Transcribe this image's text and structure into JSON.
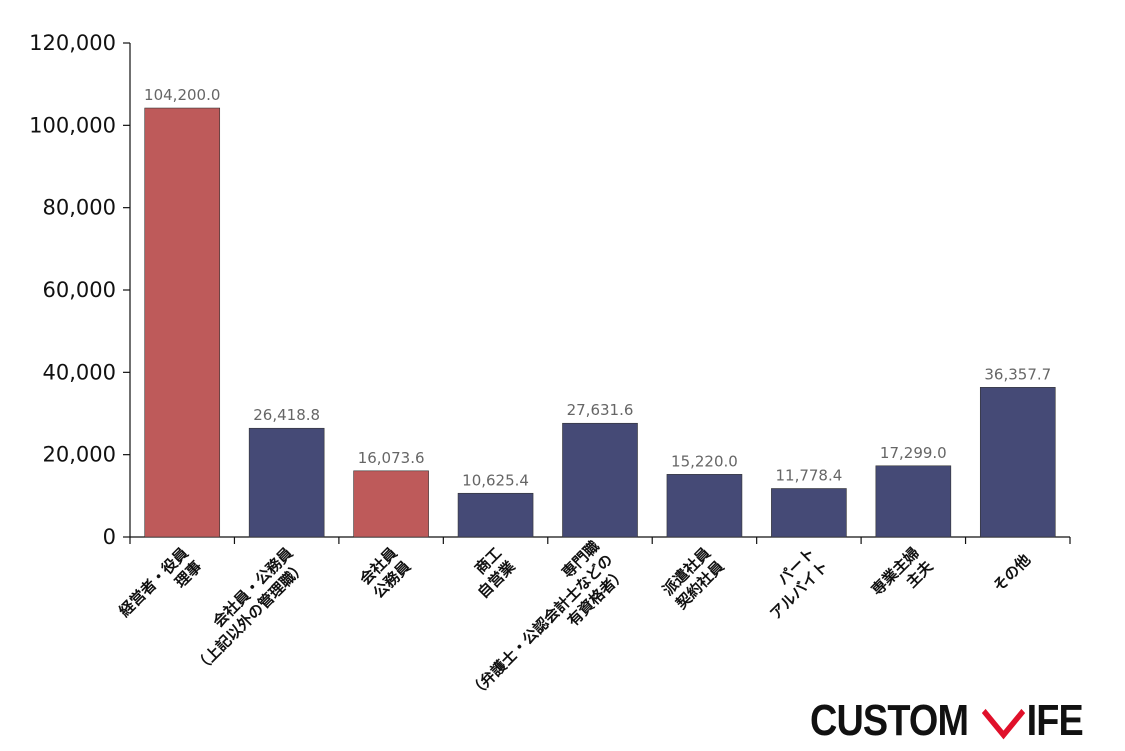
{
  "chart_data": {
    "type": "bar",
    "categories": [
      "経営者・役員\n理事",
      "会社員・公務員\n（上記以外の管理職）",
      "会社員\n公務員",
      "商工\n自営業",
      "専門職\n（弁護士・公認会計士などの\n有資格者）",
      "派遣社員\n契約社員",
      "パート\nアルバイト",
      "専業主婦\n主夫",
      "その他"
    ],
    "values": [
      104200.0,
      26418.8,
      16073.6,
      10625.4,
      27631.6,
      15220.0,
      11778.4,
      17299.0,
      36357.7
    ],
    "value_labels": [
      "104,200.0",
      "26,418.8",
      "16,073.6",
      "10,625.4",
      "27,631.6",
      "15,220.0",
      "11,778.4",
      "17,299.0",
      "36,357.7"
    ],
    "highlighted": [
      true,
      false,
      true,
      false,
      false,
      false,
      false,
      false,
      false
    ],
    "ylim": [
      0,
      120000
    ],
    "yticks": [
      0,
      20000,
      40000,
      60000,
      80000,
      100000,
      120000
    ],
    "ytick_labels": [
      "0",
      "20,000",
      "40,000",
      "60,000",
      "80,000",
      "100,000",
      "120,000"
    ],
    "title": "",
    "xlabel": "",
    "ylabel": "",
    "grid": false,
    "colors": {
      "highlight": "#be5a5a",
      "normal": "#454a76",
      "axis": "#111111"
    }
  },
  "logo": {
    "text_left": "CUSTOM",
    "text_right": "IFE",
    "mark_color": "#e0102a"
  }
}
